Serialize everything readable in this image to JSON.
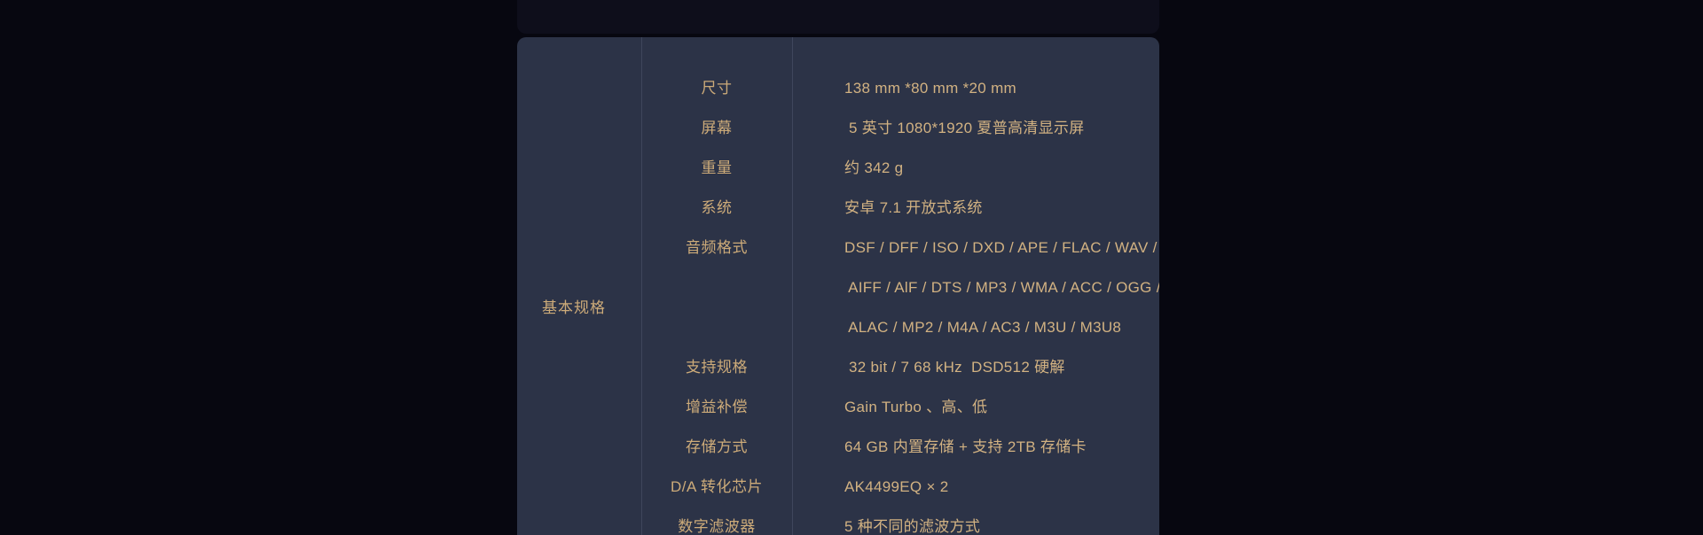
{
  "page": {
    "background_color": "#070710",
    "panel_color": "#2c3347",
    "divider_color": "#454d63",
    "text_color": "#d2b282"
  },
  "spec_table": {
    "section_label": "基本规格",
    "rows": [
      {
        "label": "尺寸",
        "values": [
          "138 mm *80 mm *20 mm"
        ]
      },
      {
        "label": "屏幕",
        "values": [
          " 5 英寸 1080*1920 夏普高清显示屏"
        ]
      },
      {
        "label": "重量",
        "values": [
          "约 342 g"
        ]
      },
      {
        "label": "系统",
        "values": [
          "安卓 7.1 开放式系统"
        ]
      },
      {
        "label": "音频格式",
        "values": [
          "DSF / DFF / ISO / DXD / APE / FLAC / WAV /",
          " AIFF / AlF / DTS / MP3 / WMA / ACC / OGG /",
          " ALAC / MP2 / M4A / AC3 / M3U / M3U8"
        ]
      },
      {
        "label": "支持规格",
        "values": [
          " 32 bit / 7 68 kHz  DSD512 硬解"
        ]
      },
      {
        "label": "增益补偿",
        "values": [
          "Gain Turbo 、高、低"
        ]
      },
      {
        "label": "存储方式",
        "values": [
          "64 GB 内置存储 + 支持 2TB 存储卡"
        ]
      },
      {
        "label": "D/A 转化芯片",
        "values": [
          "AK4499EQ × 2"
        ]
      },
      {
        "label": "数字滤波器",
        "values": [
          "5 种不同的滤波方式"
        ]
      }
    ]
  }
}
